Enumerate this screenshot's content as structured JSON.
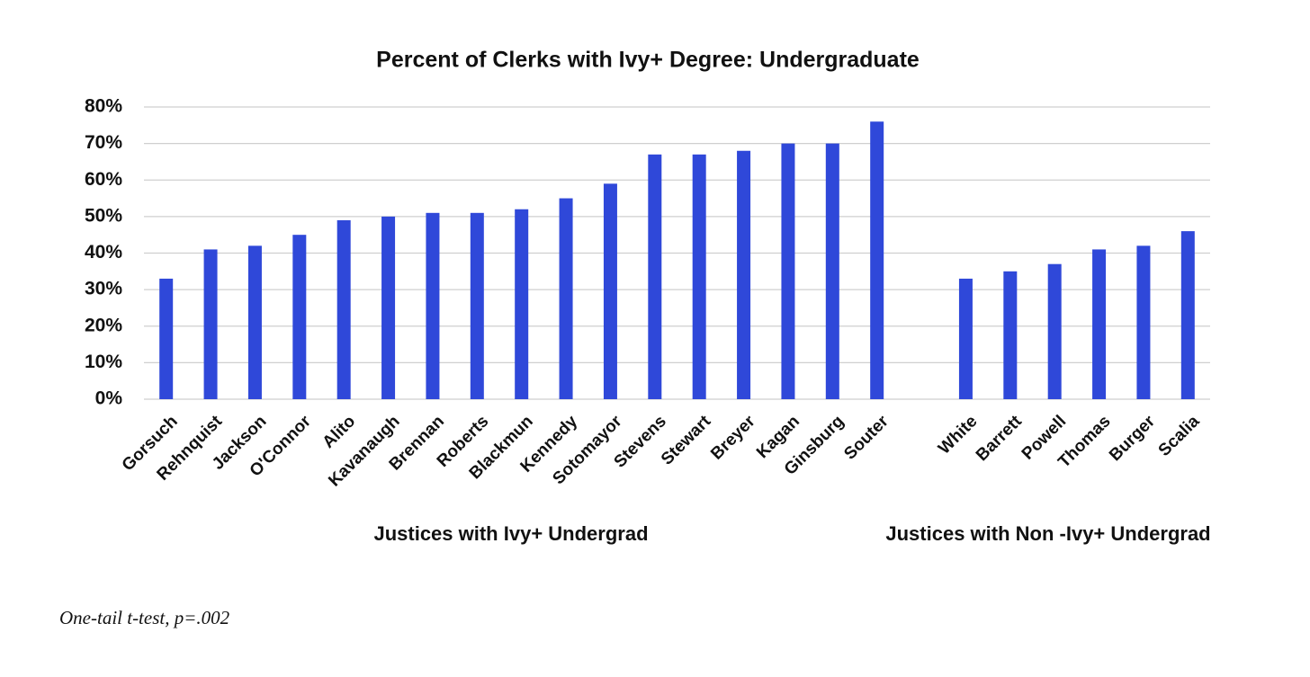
{
  "chart_data": {
    "type": "bar",
    "title": "Percent of Clerks with Ivy+ Degree: Undergraduate",
    "categories": [
      "Gorsuch",
      "Rehnquist",
      "Jackson",
      "O'Connor",
      "Alito",
      "Kavanaugh",
      "Brennan",
      "Roberts",
      "Blackmun",
      "Kennedy",
      "Sotomayor",
      "Stevens",
      "Stewart",
      "Breyer",
      "Kagan",
      "Ginsburg",
      "Souter",
      null,
      "White",
      "Barrett",
      "Powell",
      "Thomas",
      "Burger",
      "Scalia"
    ],
    "values": [
      33,
      41,
      42,
      45,
      49,
      50,
      51,
      51,
      52,
      55,
      59,
      67,
      67,
      68,
      70,
      70,
      76,
      null,
      33,
      35,
      37,
      41,
      42,
      46
    ],
    "color": "#2f48d9",
    "ylim": [
      0,
      80
    ],
    "yticks": [
      {
        "value": 0,
        "label": "0%"
      },
      {
        "value": 10,
        "label": "10%"
      },
      {
        "value": 20,
        "label": "20%"
      },
      {
        "value": 30,
        "label": "30%"
      },
      {
        "value": 40,
        "label": "40%"
      },
      {
        "value": 50,
        "label": "50%"
      },
      {
        "value": 60,
        "label": "60%"
      },
      {
        "value": 70,
        "label": "70%"
      },
      {
        "value": 80,
        "label": "80%"
      }
    ],
    "grid": true,
    "group_labels": [
      "Justices with Ivy+ Undergrad",
      "Justices with Non -Ivy+ Undergrad"
    ],
    "footnote": "One-tail t-test, p=.002"
  }
}
